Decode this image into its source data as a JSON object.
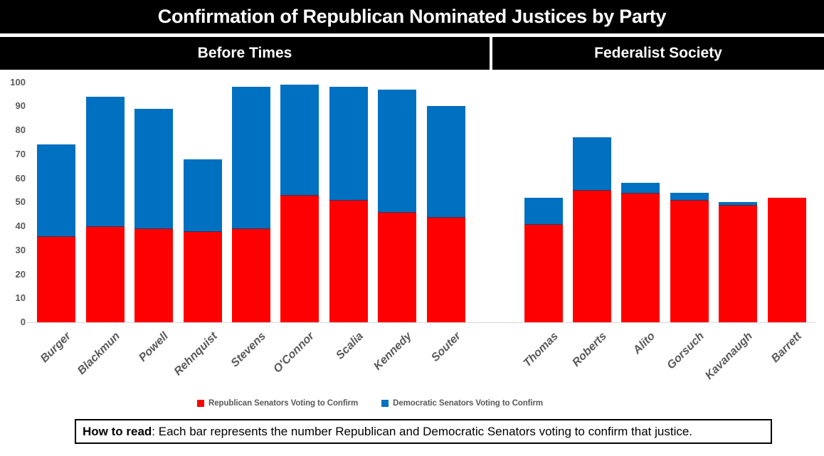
{
  "header": {
    "title": "Confirmation of Republican Nominated Justices by Party",
    "sections": [
      "Before Times",
      "Federalist Society"
    ]
  },
  "legend": {
    "items": [
      {
        "label": "Republican Senators Voting to Confirm",
        "color": "#FF0000"
      },
      {
        "label": "Democratic Senators Voting to Confirm",
        "color": "#0070C0"
      }
    ]
  },
  "footer": {
    "bold_label": "How to read",
    "text": ": Each bar represents the number Republican and Democratic Senators voting to confirm that justice."
  },
  "chart_data": {
    "type": "bar",
    "stacked": true,
    "title": "Confirmation of Republican Nominated Justices by Party",
    "group_labels": [
      "Before Times",
      "Federalist Society"
    ],
    "groups": [
      {
        "label": "Before Times",
        "categories": [
          "Burger",
          "Blackmun",
          "Powell",
          "Rehnquist",
          "Stevens",
          "O'Connor",
          "Scalia",
          "Kennedy",
          "Souter"
        ]
      },
      {
        "label": "Federalist Society",
        "categories": [
          "Thomas",
          "Roberts",
          "Alito",
          "Gorsuch",
          "Kavanaugh",
          "Barrett"
        ]
      }
    ],
    "categories": [
      "Burger",
      "Blackmun",
      "Powell",
      "Rehnquist",
      "Stevens",
      "O'Connor",
      "Scalia",
      "Kennedy",
      "Souter",
      "Thomas",
      "Roberts",
      "Alito",
      "Gorsuch",
      "Kavanaugh",
      "Barrett"
    ],
    "series": [
      {
        "name": "Republican Senators Voting to Confirm",
        "color": "#FF0000",
        "values": [
          36,
          40,
          39,
          38,
          39,
          53,
          51,
          46,
          44,
          41,
          55,
          54,
          51,
          49,
          52
        ]
      },
      {
        "name": "Democratic Senators Voting to Confirm",
        "color": "#0070C0",
        "values": [
          38,
          54,
          50,
          30,
          59,
          46,
          47,
          51,
          46,
          11,
          22,
          4,
          3,
          1,
          0
        ]
      }
    ],
    "totals": [
      74,
      94,
      89,
      68,
      98,
      99,
      98,
      97,
      90,
      52,
      77,
      58,
      54,
      50,
      52
    ],
    "ylim": [
      0,
      100
    ],
    "yticks": [
      0,
      10,
      20,
      30,
      40,
      50,
      60,
      70,
      80,
      90,
      100
    ],
    "grid": false,
    "legend_position": "bottom",
    "axis_text_color": "#595959"
  }
}
